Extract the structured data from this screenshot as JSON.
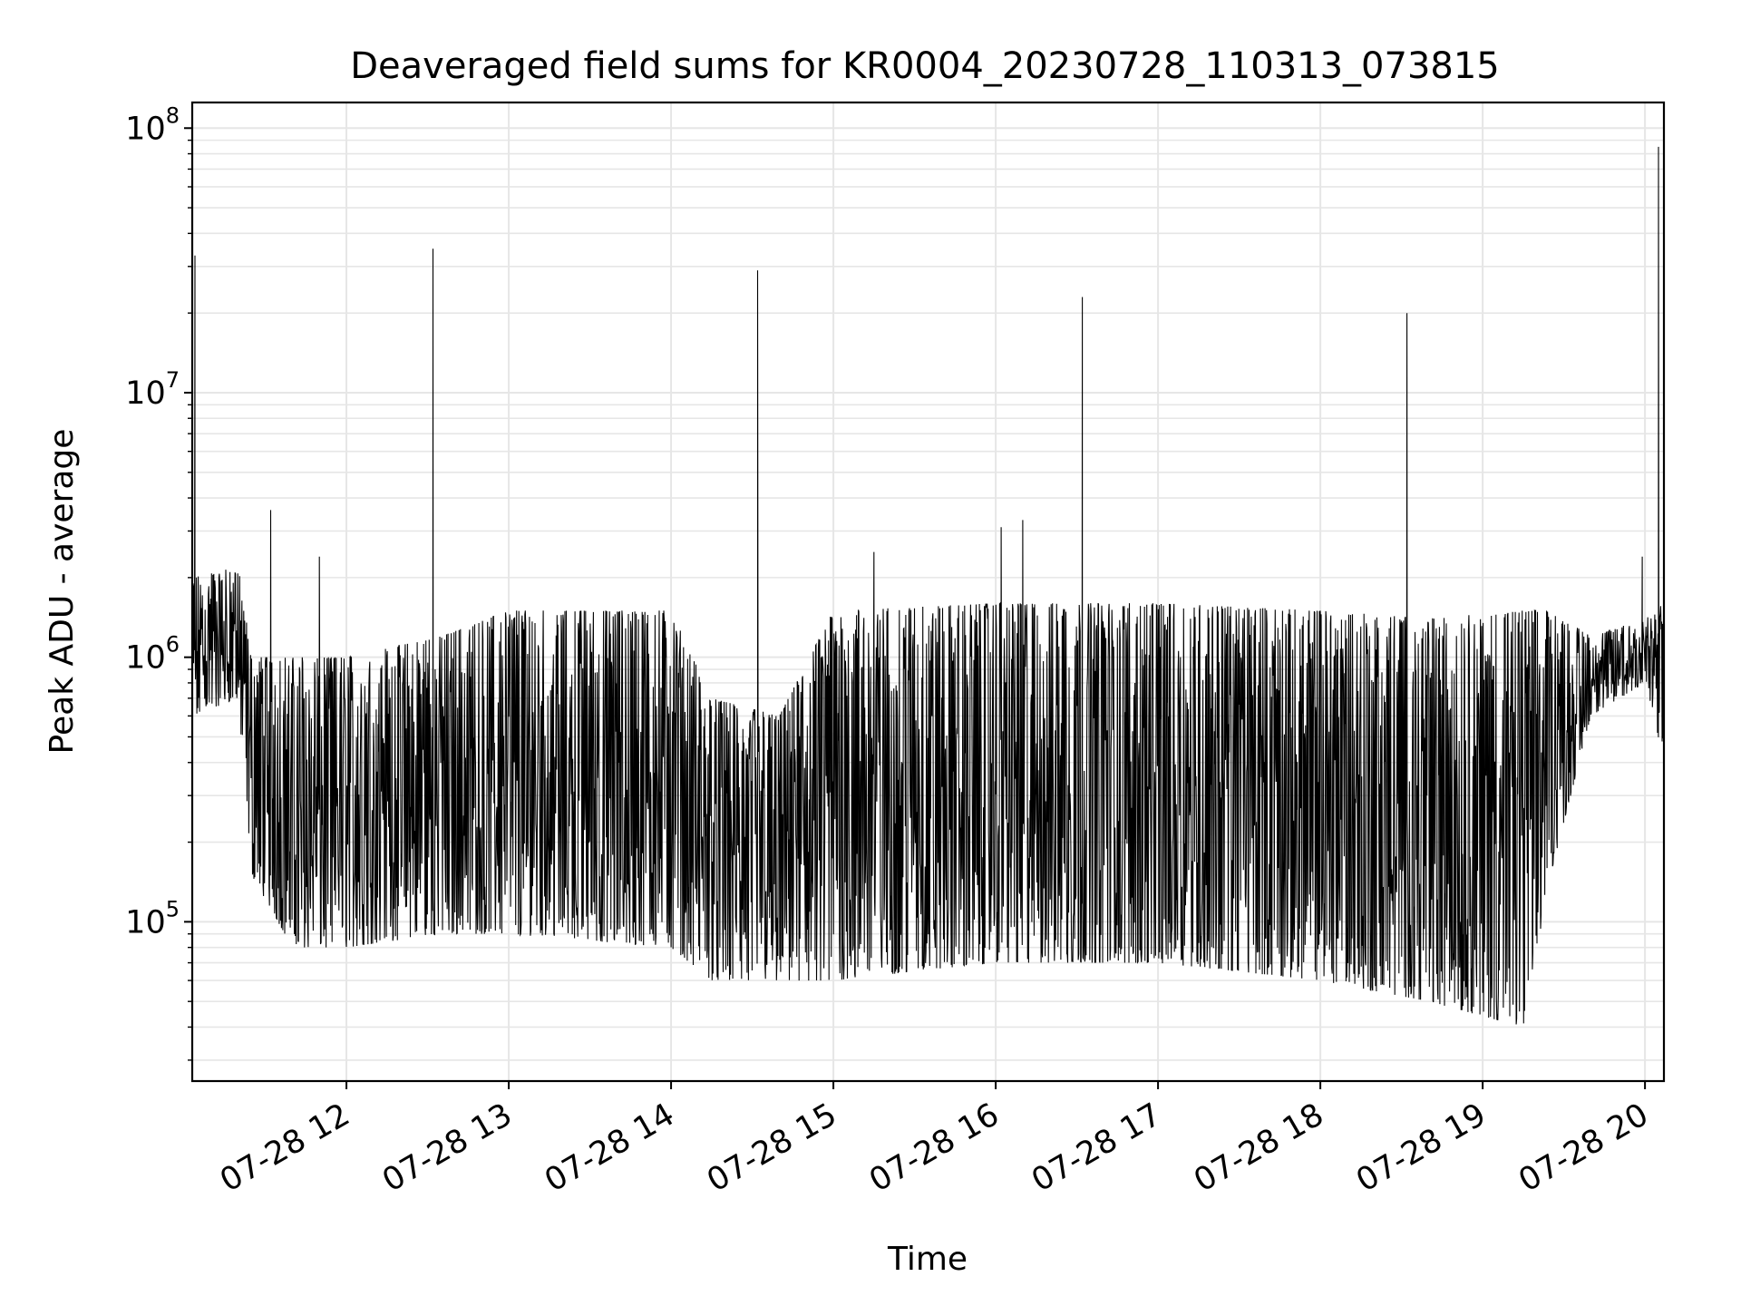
{
  "chart_data": {
    "type": "line",
    "title": "Deaveraged field sums for KR0004_20230728_110313_073815",
    "xlabel": "Time",
    "ylabel": "Peak ADU - average",
    "yscale": "log",
    "ylim": [
      25000,
      125000000
    ],
    "xlim": [
      "2023-07-28 11:03",
      "2023-07-28 20:07"
    ],
    "x_ticks": [
      {
        "value": "2023-07-28 12:00",
        "label": "07-28 12"
      },
      {
        "value": "2023-07-28 13:00",
        "label": "07-28 13"
      },
      {
        "value": "2023-07-28 14:00",
        "label": "07-28 14"
      },
      {
        "value": "2023-07-28 15:00",
        "label": "07-28 15"
      },
      {
        "value": "2023-07-28 16:00",
        "label": "07-28 16"
      },
      {
        "value": "2023-07-28 17:00",
        "label": "07-28 17"
      },
      {
        "value": "2023-07-28 18:00",
        "label": "07-28 18"
      },
      {
        "value": "2023-07-28 19:00",
        "label": "07-28 19"
      },
      {
        "value": "2023-07-28 20:00",
        "label": "07-28 20"
      }
    ],
    "y_ticks": [
      {
        "value": 100000,
        "base": "10",
        "exp": "5"
      },
      {
        "value": 1000000,
        "base": "10",
        "exp": "6"
      },
      {
        "value": 10000000,
        "base": "10",
        "exp": "7"
      },
      {
        "value": 100000000,
        "base": "10",
        "exp": "8"
      }
    ],
    "grid": true,
    "line_color": "#000000",
    "grid_color": "#e6e6e6",
    "envelope": [
      {
        "t": "2023-07-28 11:03",
        "low": 600000,
        "high": 2000000
      },
      {
        "t": "2023-07-28 11:20",
        "low": 700000,
        "high": 2200000
      },
      {
        "t": "2023-07-28 11:25",
        "low": 150000,
        "high": 1000000
      },
      {
        "t": "2023-07-28 11:40",
        "low": 80000,
        "high": 1000000
      },
      {
        "t": "2023-07-28 12:00",
        "low": 80000,
        "high": 1000000
      },
      {
        "t": "2023-07-28 12:35",
        "low": 90000,
        "high": 1200000
      },
      {
        "t": "2023-07-28 13:00",
        "low": 90000,
        "high": 1500000
      },
      {
        "t": "2023-07-28 14:00",
        "low": 80000,
        "high": 1500000
      },
      {
        "t": "2023-07-28 14:15",
        "low": 60000,
        "high": 700000
      },
      {
        "t": "2023-07-28 14:40",
        "low": 60000,
        "high": 600000
      },
      {
        "t": "2023-07-28 15:00",
        "low": 60000,
        "high": 1500000
      },
      {
        "t": "2023-07-28 16:00",
        "low": 70000,
        "high": 1600000
      },
      {
        "t": "2023-07-28 17:00",
        "low": 70000,
        "high": 1600000
      },
      {
        "t": "2023-07-28 18:00",
        "low": 60000,
        "high": 1500000
      },
      {
        "t": "2023-07-28 18:40",
        "low": 50000,
        "high": 1400000
      },
      {
        "t": "2023-07-28 19:15",
        "low": 40000,
        "high": 1500000
      },
      {
        "t": "2023-07-28 19:25",
        "low": 150000,
        "high": 1500000
      },
      {
        "t": "2023-07-28 19:40",
        "low": 600000,
        "high": 1200000
      },
      {
        "t": "2023-07-28 20:00",
        "low": 800000,
        "high": 1400000
      },
      {
        "t": "2023-07-28 20:07",
        "low": 400000,
        "high": 1600000
      }
    ],
    "spikes": [
      {
        "t": "2023-07-28 11:04",
        "value": 33000000
      },
      {
        "t": "2023-07-28 11:32",
        "value": 3600000
      },
      {
        "t": "2023-07-28 11:50",
        "value": 2400000
      },
      {
        "t": "2023-07-28 12:32",
        "value": 35000000
      },
      {
        "t": "2023-07-28 14:32",
        "value": 29000000
      },
      {
        "t": "2023-07-28 15:15",
        "value": 2500000
      },
      {
        "t": "2023-07-28 16:02",
        "value": 3100000
      },
      {
        "t": "2023-07-28 16:10",
        "value": 3300000
      },
      {
        "t": "2023-07-28 16:32",
        "value": 23000000
      },
      {
        "t": "2023-07-28 18:32",
        "value": 20000000
      },
      {
        "t": "2023-07-28 19:59",
        "value": 2400000
      },
      {
        "t": "2023-07-28 20:05",
        "value": 85000000
      }
    ]
  }
}
